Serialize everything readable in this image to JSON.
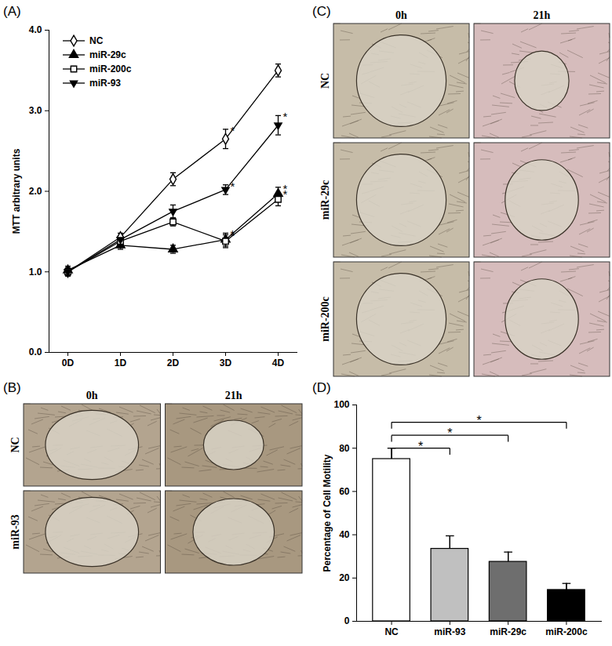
{
  "chart_data": [
    {
      "panel": "(A)",
      "type": "line",
      "ylabel": "MTT arbitrary units",
      "categories": [
        "0D",
        "1D",
        "2D",
        "3D",
        "4D"
      ],
      "ylim": [
        0,
        4
      ],
      "yticks": [
        0,
        1,
        2,
        3,
        4
      ],
      "legend": "top-left",
      "series": [
        {
          "name": "NC",
          "color": "#000000",
          "marker": "diamond-open",
          "values": [
            1.0,
            1.43,
            2.15,
            2.65,
            3.5
          ],
          "errors": [
            0.05,
            0.05,
            0.08,
            0.12,
            0.08
          ],
          "annotations": [
            null,
            null,
            null,
            "*",
            null
          ]
        },
        {
          "name": "miR-29c",
          "color": "#000000",
          "marker": "triangle",
          "values": [
            1.02,
            1.33,
            1.28,
            1.4,
            1.97
          ],
          "errors": [
            0.05,
            0.05,
            0.05,
            0.08,
            0.08
          ],
          "annotations": [
            null,
            null,
            null,
            "*",
            "*"
          ]
        },
        {
          "name": "miR-200c",
          "color": "#000000",
          "marker": "square-open",
          "values": [
            1.0,
            1.38,
            1.62,
            1.38,
            1.9
          ],
          "errors": [
            0.05,
            0.05,
            0.05,
            0.08,
            0.08
          ],
          "annotations": [
            null,
            null,
            null,
            "*",
            "*"
          ]
        },
        {
          "name": "miR-93",
          "color": "#000000",
          "marker": "triangle-down",
          "values": [
            1.0,
            1.4,
            1.75,
            2.02,
            2.82
          ],
          "errors": [
            0.05,
            0.05,
            0.08,
            0.06,
            0.12
          ],
          "annotations": [
            null,
            null,
            null,
            "*",
            "*"
          ]
        }
      ]
    },
    {
      "panel": "(D)",
      "type": "bar",
      "ylabel": "Percentage of Cell Motility",
      "categories": [
        "NC",
        "miR-93",
        "miR-29c",
        "miR-200c"
      ],
      "values": [
        75,
        33.5,
        27.5,
        14.5
      ],
      "errors": [
        5,
        6,
        4.5,
        3
      ],
      "colors": [
        "#ffffff",
        "#c0c0c0",
        "#6e6e6e",
        "#000000"
      ],
      "ylim": [
        0,
        100
      ],
      "yticks": [
        0,
        20,
        40,
        60,
        80,
        100
      ],
      "comparisons": [
        {
          "from": "NC",
          "to": "miR-93",
          "y": 80,
          "label": "*"
        },
        {
          "from": "NC",
          "to": "miR-29c",
          "y": 86,
          "label": "*"
        },
        {
          "from": "NC",
          "to": "miR-200c",
          "y": 92,
          "label": "*"
        }
      ]
    }
  ],
  "image_panels": [
    {
      "panel": "(B)",
      "columns": [
        "0h",
        "21h"
      ],
      "rows": [
        "NC",
        "miR-93"
      ]
    },
    {
      "panel": "(C)",
      "columns": [
        "0h",
        "21h"
      ],
      "rows": [
        "NC",
        "miR-29c",
        "miR-200c"
      ]
    }
  ]
}
